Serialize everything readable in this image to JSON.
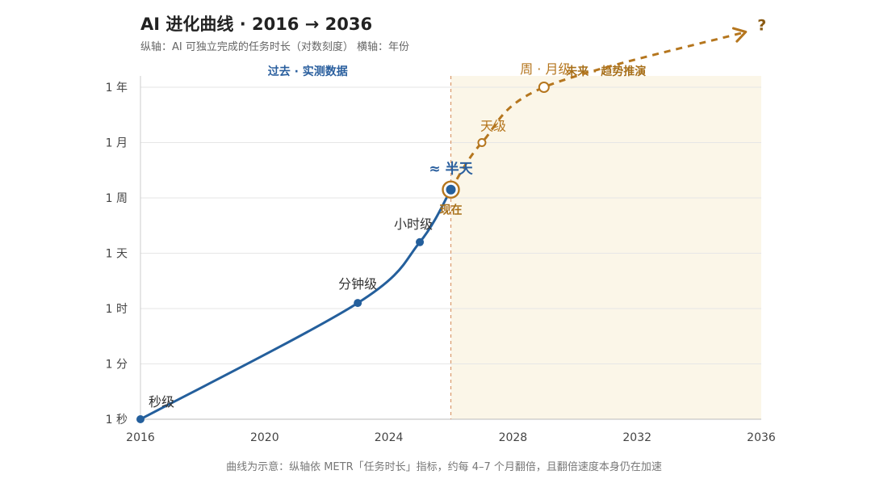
{
  "header": {
    "title": "AI 进化曲线 · 2016 → 2036",
    "subtitle": "纵轴：AI 可独立完成的任务时长（对数刻度）   横轴：年份",
    "footnote": "曲线为示意：纵轴依 METR「任务时长」指标，约每 4–7 个月翻倍，且翻倍速度本身仍在加速"
  },
  "chart_data": {
    "type": "line",
    "title": "AI 进化曲线 · 2016 → 2036",
    "subtitle": "纵轴：AI 可独立完成的任务时长（对数刻度）   横轴：年份",
    "xlabel": "",
    "ylabel": "",
    "xlim": [
      2016,
      2036
    ],
    "x_ticks": [
      2016,
      2020,
      2024,
      2028,
      2032,
      2036
    ],
    "y_scale": "log",
    "y_ticks": [
      "1 秒",
      "1 分",
      "1 时",
      "1 天",
      "1 周",
      "1 月",
      "1 年"
    ],
    "grid": true,
    "regions": [
      {
        "label": "过去 · 实测数据",
        "x_range": [
          2016,
          2026
        ],
        "color": "#ffffff"
      },
      {
        "label": "未来 · 趋势推演",
        "x_range": [
          2026,
          2036
        ],
        "color": "#fbf6e8"
      }
    ],
    "now_marker": {
      "x": 2026,
      "label": "现在",
      "value_label": "≈ 半天"
    },
    "series": [
      {
        "style": "solid",
        "color": "#245f9c",
        "points": [
          {
            "x": 2016,
            "y": 0,
            "label": "秒级"
          },
          {
            "x": 2023,
            "y": 2.1,
            "label": "分钟级"
          },
          {
            "x": 2025,
            "y": 3.2,
            "label": "小时级"
          },
          {
            "x": 2026,
            "y": 4.15,
            "label": ""
          }
        ]
      },
      {
        "style": "dashed",
        "color": "#b5761e",
        "points": [
          {
            "x": 2026,
            "y": 4.15,
            "label": ""
          },
          {
            "x": 2027,
            "y": 5.0,
            "label": "天级"
          },
          {
            "x": 2029,
            "y": 6.0,
            "label": "周 · 月级"
          },
          {
            "x": 2035.5,
            "y": 7.0,
            "label": "?"
          }
        ]
      }
    ]
  }
}
